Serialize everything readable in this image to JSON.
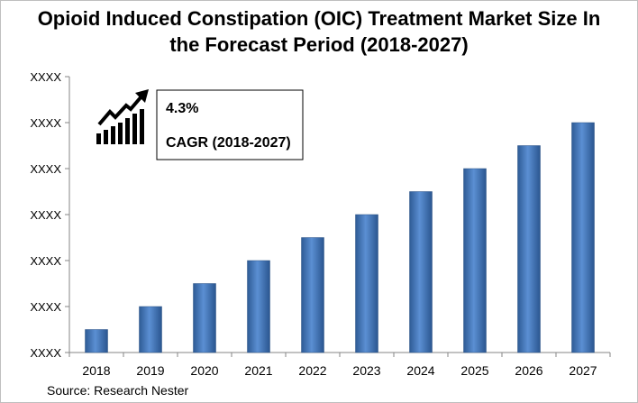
{
  "title_line1": "Opioid Induced Constipation (OIC) Treatment Market Size In",
  "title_line2": "the Forecast Period (2018-2027)",
  "source": "Source: Research Nester",
  "callout": {
    "value": "4.3%",
    "label": "CAGR (2018-2027)",
    "icon": "growth-chart-arrow-icon"
  },
  "chart_data": {
    "type": "bar",
    "categories": [
      "2018",
      "2019",
      "2020",
      "2021",
      "2022",
      "2023",
      "2024",
      "2025",
      "2026",
      "2027"
    ],
    "values": [
      0.5,
      1,
      1.5,
      2,
      2.5,
      3,
      3.5,
      4,
      4.5,
      5
    ],
    "ytick_labels": [
      "XXXX",
      "XXXX",
      "XXXX",
      "XXXX",
      "XXXX",
      "XXXX",
      "XXXX"
    ],
    "ylim": [
      0,
      6
    ],
    "grid": false,
    "bar_color": "#4f81bd"
  }
}
